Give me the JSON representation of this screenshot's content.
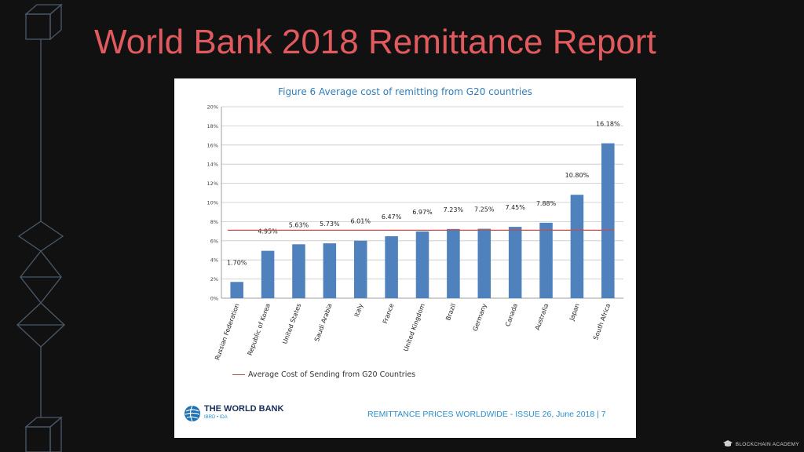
{
  "slide": {
    "title": "World Bank 2018 Remittance Report"
  },
  "chart_data": {
    "type": "bar",
    "title": "Figure 6 Average cost of remitting from G20 countries",
    "categories": [
      "Russian Federation",
      "Republic of Korea",
      "United States",
      "Saudi Arabia",
      "Italy",
      "France",
      "United Kingdom",
      "Brazil",
      "Germany",
      "Canada",
      "Australia",
      "Japan",
      "South Africa"
    ],
    "values": [
      1.7,
      4.95,
      5.63,
      5.73,
      6.01,
      6.47,
      6.97,
      7.23,
      7.25,
      7.45,
      7.88,
      10.8,
      16.18
    ],
    "value_labels": [
      "1.70%",
      "4.95%",
      "5.63%",
      "5.73%",
      "6.01%",
      "6.47%",
      "6.97%",
      "7.23%",
      "7.25%",
      "7.45%",
      "7.88%",
      "10.80%",
      "16.18%"
    ],
    "ylim": [
      0,
      20
    ],
    "yticks": [
      "0%",
      "2%",
      "4%",
      "6%",
      "8%",
      "10%",
      "12%",
      "14%",
      "16%",
      "18%",
      "20%"
    ],
    "grid": true,
    "reference_line": {
      "name": "Average Cost of Sending from G20 Countries",
      "value": 7.1
    },
    "bar_color": "#4f81bd",
    "reference_color": "#c0504d",
    "legend_placement": "bottom-left"
  },
  "footer": {
    "logo_name": "THE WORLD BANK",
    "logo_sub": "IBRD • IDA",
    "text": "REMITTANCE PRICES WORLDWIDE - ISSUE 26, June 2018 | 7"
  },
  "brand": {
    "academy": "BLOCKCHAIN ACADEMY"
  },
  "colors": {
    "title": "#e05a5e",
    "background": "#111111",
    "footer_text": "#2a8fcf"
  }
}
